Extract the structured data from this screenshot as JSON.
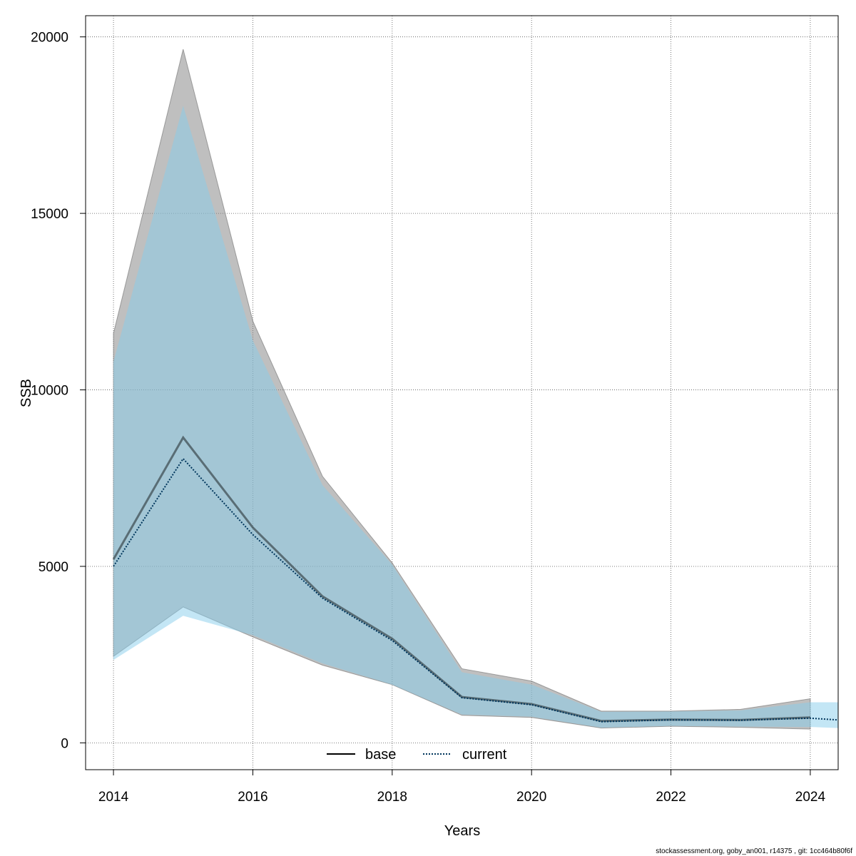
{
  "chart_data": {
    "type": "area",
    "title": "",
    "xlabel": "Years",
    "ylabel": "SSB",
    "xlim": [
      2013.6,
      2024.4
    ],
    "ylim": [
      -760,
      20600
    ],
    "grid": true,
    "legend_position": "bottom-center",
    "x_ticks": [
      "2014",
      "2016",
      "2018",
      "2020",
      "2022",
      "2024"
    ],
    "y_ticks": [
      "0",
      "5000",
      "10000",
      "15000",
      "20000"
    ],
    "x": [
      2014,
      2015,
      2016,
      2017,
      2018,
      2019,
      2020,
      2021,
      2022,
      2023,
      2024
    ],
    "series": [
      {
        "name": "base",
        "line_style": "solid",
        "line_color": "#000000",
        "band_color": "#808080",
        "x": [
          2014,
          2015,
          2016,
          2017,
          2018,
          2019,
          2020,
          2021,
          2022,
          2023,
          2024
        ],
        "values": [
          5200,
          8650,
          6100,
          4150,
          2950,
          1300,
          1100,
          620,
          660,
          650,
          720
        ],
        "upper": [
          11600,
          19650,
          11950,
          7550,
          5100,
          2100,
          1750,
          900,
          900,
          950,
          1250
        ],
        "lower": [
          2450,
          3850,
          3000,
          2200,
          1650,
          780,
          720,
          420,
          470,
          440,
          390
        ]
      },
      {
        "name": "current",
        "line_style": "dotted",
        "line_color": "#00365c",
        "band_color": "#87ceeb",
        "x": [
          2014,
          2015,
          2016,
          2017,
          2018,
          2019,
          2020,
          2021,
          2022,
          2023,
          2024,
          2024.4
        ],
        "values": [
          5000,
          8050,
          5900,
          4100,
          2900,
          1280,
          1080,
          600,
          650,
          640,
          700,
          650
        ],
        "upper": [
          10800,
          18050,
          11400,
          7300,
          5050,
          2000,
          1650,
          880,
          890,
          920,
          1150,
          1150
        ],
        "lower": [
          2350,
          3600,
          3050,
          2250,
          1650,
          800,
          740,
          430,
          480,
          460,
          450,
          420
        ]
      }
    ]
  },
  "legend": {
    "base_label": "base",
    "current_label": "current"
  },
  "footer": {
    "note": "stockassessment.org, goby_an001, r14375 , git: 1cc464b80f6f"
  }
}
